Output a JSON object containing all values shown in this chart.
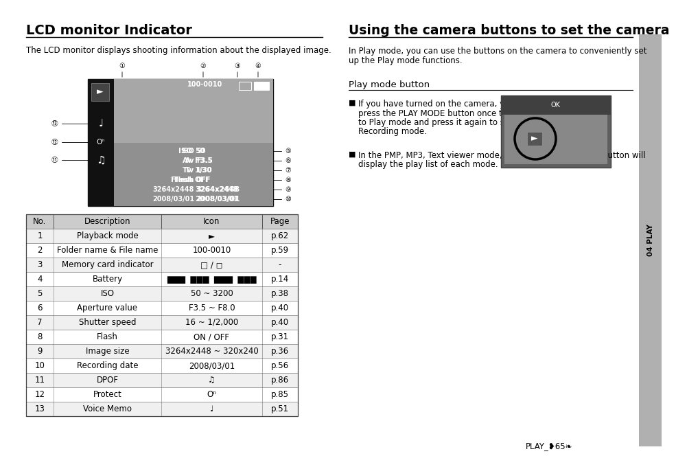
{
  "left_title": "LCD monitor Indicator",
  "left_subtitle": "The LCD monitor displays shooting information about the displayed image.",
  "right_title": "Using the camera buttons to set the camera",
  "right_para1": "In Play mode, you can use the buttons on the camera to conveniently set\nup the Play mode functions.",
  "right_sub": "Play mode button",
  "right_bullet1_lines": [
    "If you have turned on the camera, you can",
    "press the PLAY MODE button once to switch",
    "to Play mode and press it again to switch to",
    "Recording mode."
  ],
  "right_bullet2_lines": [
    "In the PMP, MP3, Text viewer mode, pressing the Play mode button will",
    "display the play list of each mode."
  ],
  "table_headers": [
    "No.",
    "Description",
    "Icon",
    "Page"
  ],
  "table_rows": [
    [
      "1",
      "Playback mode",
      "►",
      "p.62"
    ],
    [
      "2",
      "Folder name & File name",
      "100-0010",
      "p.59"
    ],
    [
      "3",
      "Memory card indicator",
      "□ / ◻",
      "-"
    ],
    [
      "4",
      "Battery",
      "▇▇▇  ▇▇▇  ▇▇▇  ▇▇▇",
      "p.14"
    ],
    [
      "5",
      "ISO",
      "50 ~ 3200",
      "p.38"
    ],
    [
      "6",
      "Aperture value",
      "F3.5 ~ F8.0",
      "p.40"
    ],
    [
      "7",
      "Shutter speed",
      "16 ~ 1/2,000",
      "p.40"
    ],
    [
      "8",
      "Flash",
      "ON / OFF",
      "p.31"
    ],
    [
      "9",
      "Image size",
      "3264x2448 ~ 320x240",
      "p.36"
    ],
    [
      "10",
      "Recording date",
      "2008/03/01",
      "p.56"
    ],
    [
      "11",
      "DPOF",
      "♫",
      "p.86"
    ],
    [
      "12",
      "Protect",
      "Oⁿ",
      "p.85"
    ],
    [
      "13",
      "Voice Memo",
      "♩",
      "p.51"
    ]
  ],
  "bg_color": "#ffffff",
  "header_bg": "#cccccc",
  "sidebar_color": "#b0b0b0",
  "footer_text": "PLAY_❥65❧"
}
